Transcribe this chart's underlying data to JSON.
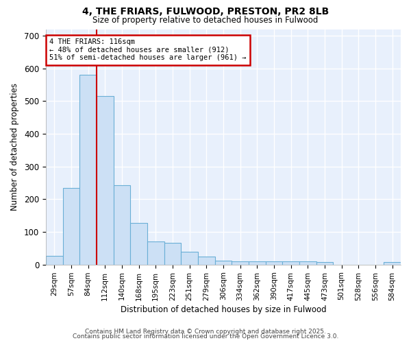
{
  "title": "4, THE FRIARS, FULWOOD, PRESTON, PR2 8LB",
  "subtitle": "Size of property relative to detached houses in Fulwood",
  "xlabel": "Distribution of detached houses by size in Fulwood",
  "ylabel": "Number of detached properties",
  "bar_labels": [
    "29sqm",
    "57sqm",
    "84sqm",
    "112sqm",
    "140sqm",
    "168sqm",
    "195sqm",
    "223sqm",
    "251sqm",
    "279sqm",
    "306sqm",
    "334sqm",
    "362sqm",
    "390sqm",
    "417sqm",
    "445sqm",
    "473sqm",
    "501sqm",
    "528sqm",
    "556sqm",
    "584sqm"
  ],
  "bar_values": [
    27,
    235,
    580,
    515,
    243,
    127,
    70,
    67,
    40,
    25,
    13,
    10,
    10,
    10,
    10,
    10,
    7,
    0,
    0,
    0,
    7
  ],
  "bar_color": "#cce0f5",
  "bar_edge_color": "#6aafd6",
  "red_line_index": 3,
  "annotation_title": "4 THE FRIARS: 116sqm",
  "annotation_line1": "← 48% of detached houses are smaller (912)",
  "annotation_line2": "51% of semi-detached houses are larger (961) →",
  "annotation_box_facecolor": "#ffffff",
  "annotation_box_edgecolor": "#cc0000",
  "red_line_color": "#cc0000",
  "background_color": "#ffffff",
  "plot_bg_color": "#e8f0fc",
  "grid_color": "#ffffff",
  "ylim": [
    0,
    720
  ],
  "footer1": "Contains HM Land Registry data © Crown copyright and database right 2025.",
  "footer2": "Contains public sector information licensed under the Open Government Licence 3.0."
}
